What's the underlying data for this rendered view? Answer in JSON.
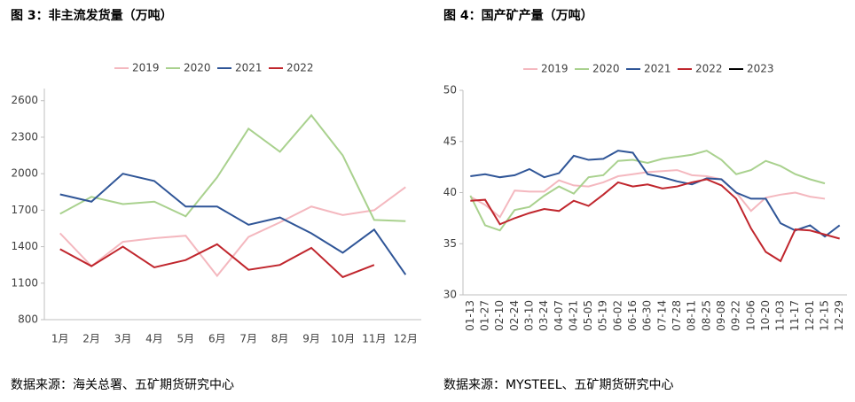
{
  "chart_data": [
    {
      "type": "line",
      "title": "图 3：非主流发货量（万吨）",
      "source": "数据来源：海关总署、五矿期货研究中心",
      "categories": [
        "1月",
        "2月",
        "3月",
        "4月",
        "5月",
        "6月",
        "7月",
        "8月",
        "9月",
        "10月",
        "11月",
        "12月"
      ],
      "series": [
        {
          "name": "2019",
          "color": "#f4b8bf",
          "values": [
            1510,
            1240,
            1440,
            1470,
            1490,
            1160,
            1480,
            1600,
            1730,
            1660,
            1700,
            1890
          ]
        },
        {
          "name": "2020",
          "color": "#a9d18e",
          "values": [
            1670,
            1810,
            1750,
            1770,
            1650,
            1970,
            2370,
            2180,
            2480,
            2150,
            1620,
            1610
          ]
        },
        {
          "name": "2021",
          "color": "#2f5597",
          "values": [
            1830,
            1770,
            2000,
            1940,
            1730,
            1730,
            1580,
            1640,
            1510,
            1350,
            1540,
            1170
          ]
        },
        {
          "name": "2022",
          "color": "#c0262d",
          "values": [
            1380,
            1240,
            1400,
            1230,
            1290,
            1420,
            1210,
            1250,
            1390,
            1150,
            1250,
            null
          ]
        }
      ],
      "ylim": [
        800,
        2700
      ],
      "yticks": [
        800,
        1100,
        1400,
        1700,
        2000,
        2300,
        2600
      ]
    },
    {
      "type": "line",
      "title": "图 4：国产矿产量（万吨）",
      "source": "数据来源：MYSTEEL、五矿期货研究中心",
      "categories": [
        "01-13",
        "01-27",
        "02-10",
        "02-24",
        "03-10",
        "03-24",
        "04-07",
        "04-21",
        "05-05",
        "05-19",
        "06-02",
        "06-16",
        "06-30",
        "07-14",
        "07-28",
        "08-11",
        "08-25",
        "09-08",
        "09-22",
        "10-06",
        "10-20",
        "11-03",
        "11-17",
        "12-01",
        "12-15",
        "12-29"
      ],
      "series": [
        {
          "name": "2019",
          "color": "#f4b8bf",
          "values": [
            39.6,
            38.8,
            37.6,
            40.2,
            40.1,
            40.1,
            41.2,
            40.7,
            40.6,
            41.0,
            41.6,
            41.8,
            42.0,
            42.1,
            42.2,
            41.7,
            41.6,
            41.3,
            40.0,
            38.2,
            39.5,
            39.8,
            40.0,
            39.6,
            39.4,
            null
          ]
        },
        {
          "name": "2020",
          "color": "#a9d18e",
          "values": [
            39.7,
            36.8,
            36.3,
            38.3,
            38.6,
            39.7,
            40.6,
            39.9,
            41.5,
            41.7,
            43.1,
            43.2,
            42.9,
            43.3,
            43.5,
            43.7,
            44.1,
            43.2,
            41.8,
            42.2,
            43.1,
            42.6,
            41.8,
            41.3,
            40.9,
            null
          ]
        },
        {
          "name": "2021",
          "color": "#2f5597",
          "values": [
            41.6,
            41.8,
            41.5,
            41.7,
            42.3,
            41.5,
            41.9,
            43.6,
            43.2,
            43.3,
            44.1,
            43.9,
            41.8,
            41.5,
            41.1,
            40.8,
            41.4,
            41.3,
            40.0,
            39.4,
            39.4,
            37.0,
            36.3,
            36.8,
            35.7,
            36.8
          ]
        },
        {
          "name": "2022",
          "color": "#c0262d",
          "values": [
            39.2,
            39.3,
            36.9,
            37.5,
            38.0,
            38.4,
            38.2,
            39.2,
            38.7,
            39.8,
            41.0,
            40.6,
            40.8,
            40.4,
            40.6,
            41.0,
            41.3,
            40.7,
            39.4,
            36.5,
            34.2,
            33.3,
            36.4,
            36.3,
            35.9,
            35.5
          ]
        },
        {
          "name": "2023",
          "color": "#000000",
          "values": [
            null,
            null,
            null,
            null,
            null,
            null,
            null,
            null,
            null,
            null,
            null,
            null,
            null,
            null,
            null,
            null,
            null,
            null,
            null,
            null,
            null,
            null,
            null,
            null,
            null,
            null
          ]
        }
      ],
      "ylim": [
        30,
        50
      ],
      "yticks": [
        30,
        35,
        40,
        45,
        50
      ]
    }
  ]
}
